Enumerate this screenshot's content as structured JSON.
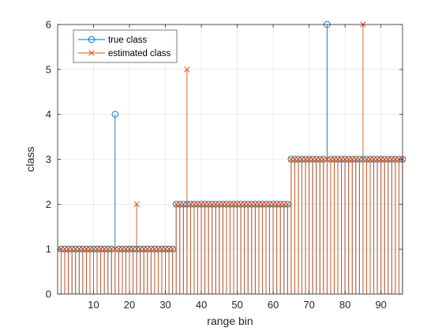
{
  "chart_data": {
    "type": "stem",
    "xlabel": "range bin",
    "ylabel": "class",
    "xlim": [
      0,
      96
    ],
    "ylim": [
      0,
      6
    ],
    "xticks": [
      10,
      20,
      30,
      40,
      50,
      60,
      70,
      80,
      90
    ],
    "yticks": [
      0,
      1,
      2,
      3,
      4,
      5,
      6
    ],
    "grid": true,
    "legend_position": "top-left",
    "series": [
      {
        "name": "true class",
        "color": "#0072BD",
        "marker": "circle",
        "x": [
          1,
          2,
          3,
          4,
          5,
          6,
          7,
          8,
          9,
          10,
          11,
          12,
          13,
          14,
          15,
          16,
          17,
          18,
          19,
          20,
          21,
          22,
          23,
          24,
          25,
          26,
          27,
          28,
          29,
          30,
          31,
          32,
          33,
          34,
          35,
          36,
          37,
          38,
          39,
          40,
          41,
          42,
          43,
          44,
          45,
          46,
          47,
          48,
          49,
          50,
          51,
          52,
          53,
          54,
          55,
          56,
          57,
          58,
          59,
          60,
          61,
          62,
          63,
          64,
          65,
          66,
          67,
          68,
          69,
          70,
          71,
          72,
          73,
          74,
          75,
          76,
          77,
          78,
          79,
          80,
          81,
          82,
          83,
          84,
          85,
          86,
          87,
          88,
          89,
          90,
          91,
          92,
          93,
          94,
          95,
          96
        ],
        "values": [
          1,
          1,
          1,
          1,
          1,
          1,
          1,
          1,
          1,
          1,
          1,
          1,
          1,
          1,
          1,
          4,
          1,
          1,
          1,
          1,
          1,
          1,
          1,
          1,
          1,
          1,
          1,
          1,
          1,
          1,
          1,
          1,
          2,
          2,
          2,
          2,
          2,
          2,
          2,
          2,
          2,
          2,
          2,
          2,
          2,
          2,
          2,
          2,
          2,
          2,
          2,
          2,
          2,
          2,
          2,
          2,
          2,
          2,
          2,
          2,
          2,
          2,
          2,
          2,
          3,
          3,
          3,
          3,
          3,
          3,
          3,
          3,
          3,
          3,
          6,
          3,
          3,
          3,
          3,
          3,
          3,
          3,
          3,
          3,
          3,
          3,
          3,
          3,
          3,
          3,
          3,
          3,
          3,
          3,
          3,
          3
        ]
      },
      {
        "name": "estimated class",
        "color": "#D95319",
        "marker": "x",
        "x": [
          1,
          2,
          3,
          4,
          5,
          6,
          7,
          8,
          9,
          10,
          11,
          12,
          13,
          14,
          15,
          16,
          17,
          18,
          19,
          20,
          21,
          22,
          23,
          24,
          25,
          26,
          27,
          28,
          29,
          30,
          31,
          32,
          33,
          34,
          35,
          36,
          37,
          38,
          39,
          40,
          41,
          42,
          43,
          44,
          45,
          46,
          47,
          48,
          49,
          50,
          51,
          52,
          53,
          54,
          55,
          56,
          57,
          58,
          59,
          60,
          61,
          62,
          63,
          64,
          65,
          66,
          67,
          68,
          69,
          70,
          71,
          72,
          73,
          74,
          75,
          76,
          77,
          78,
          79,
          80,
          81,
          82,
          83,
          84,
          85,
          86,
          87,
          88,
          89,
          90,
          91,
          92,
          93,
          94,
          95,
          96
        ],
        "values": [
          1,
          1,
          1,
          1,
          1,
          1,
          1,
          1,
          1,
          1,
          1,
          1,
          1,
          1,
          1,
          1,
          1,
          1,
          1,
          1,
          1,
          2,
          1,
          1,
          1,
          1,
          1,
          1,
          1,
          1,
          1,
          1,
          2,
          2,
          2,
          5,
          2,
          2,
          2,
          2,
          2,
          2,
          2,
          2,
          2,
          2,
          2,
          2,
          2,
          2,
          2,
          2,
          2,
          2,
          2,
          2,
          2,
          2,
          2,
          2,
          2,
          2,
          2,
          2,
          3,
          3,
          3,
          3,
          3,
          3,
          3,
          3,
          3,
          3,
          3,
          3,
          3,
          3,
          3,
          3,
          3,
          3,
          3,
          3,
          6,
          3,
          3,
          3,
          3,
          3,
          3,
          3,
          3,
          3,
          3,
          3
        ]
      }
    ]
  }
}
